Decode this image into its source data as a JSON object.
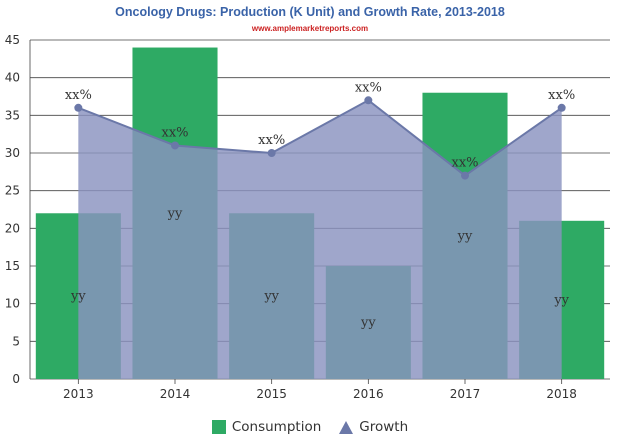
{
  "colors": {
    "title": "#3a63a8",
    "subtitle": "#cc2222",
    "consumption": "#2eaa64",
    "growth_fill": "#8a93c0",
    "growth_line": "#6b78a8",
    "grid": "#444444"
  },
  "legend": {
    "consumption_label": "Consumption",
    "growth_label": "Growth",
    "consumption_icon": "square-swatch",
    "growth_icon": "triangle-swatch"
  },
  "chart_data": {
    "type": "bar",
    "title": "Oncology Drugs: Production (K Unit) and Growth Rate, 2013-2018",
    "subtitle": "www.amplemarketreports.com",
    "categories": [
      "2013",
      "2014",
      "2015",
      "2016",
      "2017",
      "2018"
    ],
    "ylim": [
      0,
      45
    ],
    "yticks": [
      0,
      5,
      10,
      15,
      20,
      25,
      30,
      35,
      40,
      45
    ],
    "grid": true,
    "legend_position": "bottom-center",
    "series": [
      {
        "name": "Consumption",
        "type": "bar",
        "values": [
          22,
          44,
          22,
          15,
          38,
          21
        ],
        "labels": [
          "yy",
          "yy",
          "yy",
          "yy",
          "yy",
          "yy"
        ]
      },
      {
        "name": "Growth",
        "type": "area",
        "values": [
          36,
          31,
          30,
          37,
          27,
          36
        ],
        "labels": [
          "xx%",
          "xx%",
          "xx%",
          "xx%",
          "xx%",
          "xx%"
        ]
      }
    ]
  }
}
